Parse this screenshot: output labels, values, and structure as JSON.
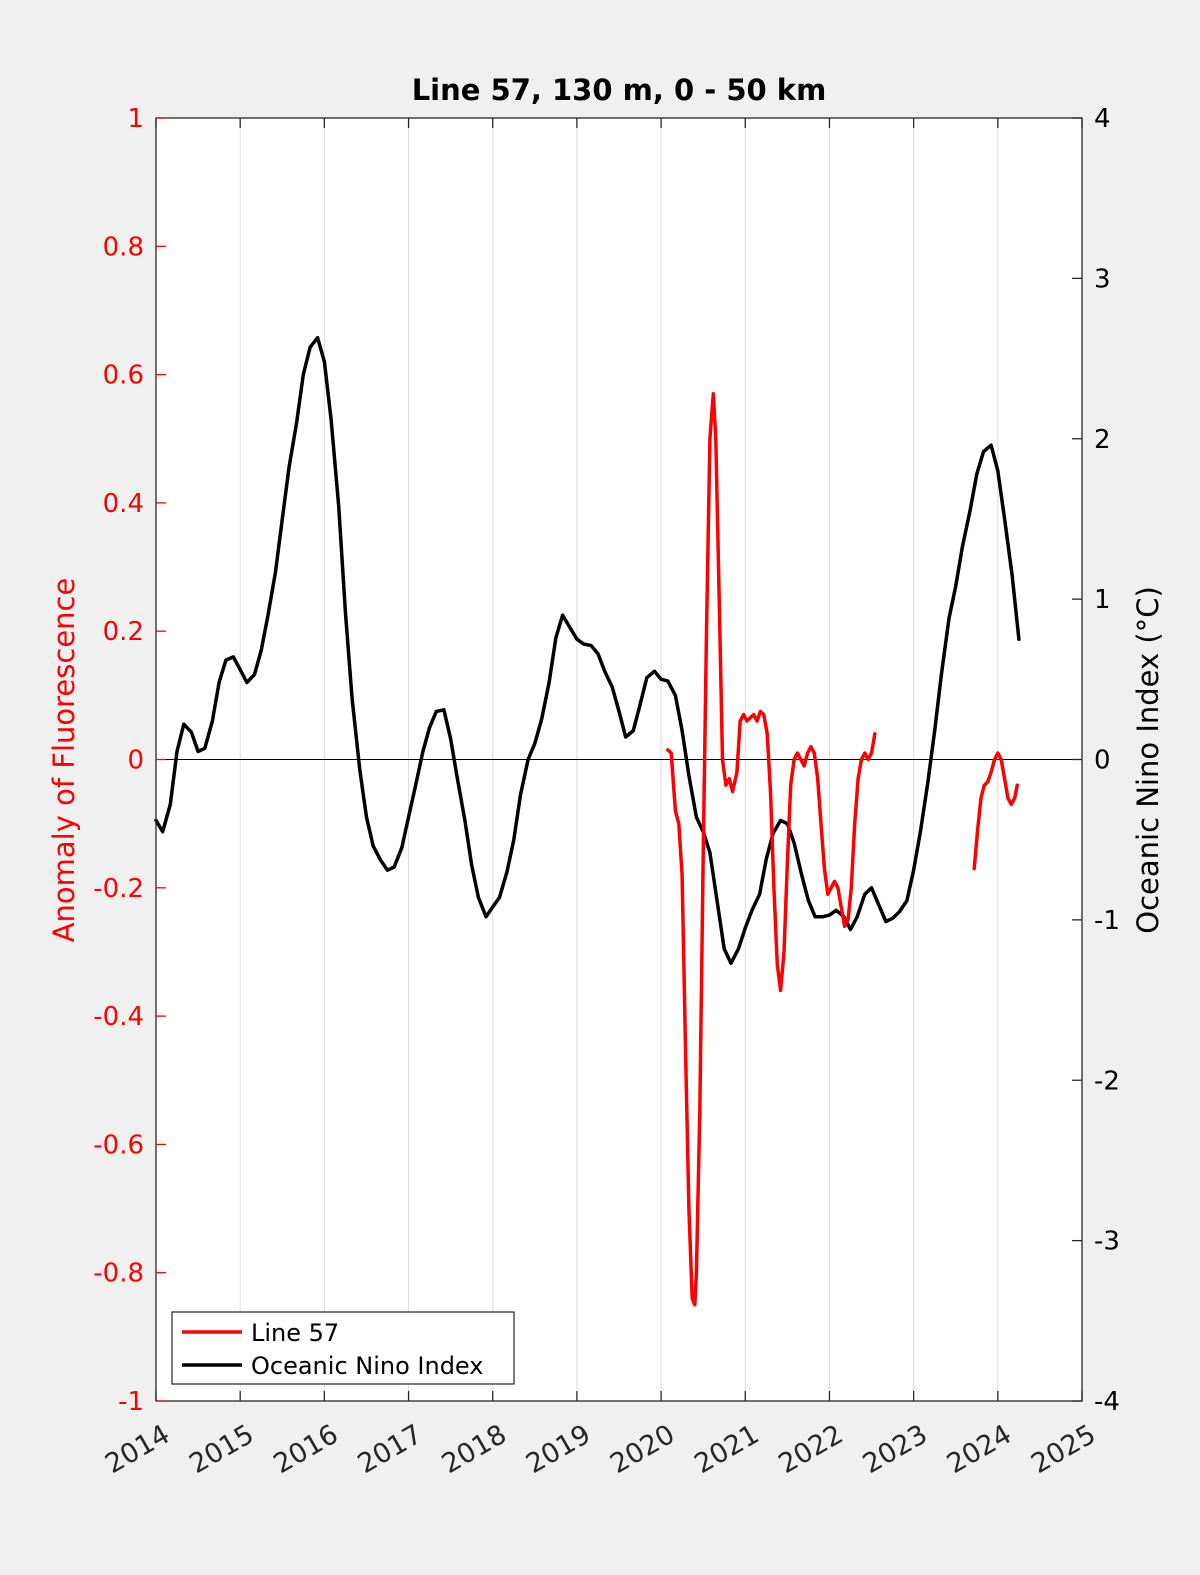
{
  "chart_data": {
    "type": "line",
    "title": "Line 57, 130 m, 0 - 50 km",
    "xlabel": "",
    "ylabel_left": "Anomaly of Fluorescence",
    "ylabel_right": "Oceanic Nino Index (°C)",
    "xlim": [
      2014,
      2025
    ],
    "ylim_left": [
      -1,
      1
    ],
    "ylim_right": [
      -4,
      4
    ],
    "x_ticks": [
      "2014",
      "2015",
      "2016",
      "2017",
      "2018",
      "2019",
      "2020",
      "2021",
      "2022",
      "2023",
      "2024",
      "2025"
    ],
    "y_ticks_left": [
      "1",
      "0.8",
      "0.6",
      "0.4",
      "0.2",
      "0",
      "-0.2",
      "-0.4",
      "-0.6",
      "-0.8",
      "-1"
    ],
    "y_ticks_right": [
      "4",
      "3",
      "2",
      "1",
      "0",
      "-1",
      "-2",
      "-3",
      "-4"
    ],
    "grid": "vertical",
    "legend_position": "bottom-left",
    "colors": {
      "line57": "#ff0000",
      "oni": "#000000",
      "left_axis": "#ff0000",
      "right_axis": "#000000"
    },
    "series": [
      {
        "name": "Line 57",
        "axis": "left",
        "segments": [
          [
            [
              2020.08,
              0.015
            ],
            [
              2020.12,
              0.01
            ],
            [
              2020.17,
              -0.08
            ],
            [
              2020.21,
              -0.1
            ],
            [
              2020.25,
              -0.18
            ],
            [
              2020.29,
              -0.45
            ],
            [
              2020.33,
              -0.7
            ],
            [
              2020.37,
              -0.84
            ],
            [
              2020.4,
              -0.85
            ],
            [
              2020.42,
              -0.8
            ],
            [
              2020.46,
              -0.55
            ],
            [
              2020.5,
              -0.15
            ],
            [
              2020.54,
              0.2
            ],
            [
              2020.58,
              0.5
            ],
            [
              2020.62,
              0.57
            ],
            [
              2020.65,
              0.5
            ],
            [
              2020.69,
              0.25
            ],
            [
              2020.73,
              0.0
            ],
            [
              2020.77,
              -0.04
            ],
            [
              2020.81,
              -0.03
            ],
            [
              2020.85,
              -0.05
            ],
            [
              2020.9,
              -0.02
            ],
            [
              2020.94,
              0.06
            ],
            [
              2020.98,
              0.07
            ],
            [
              2021.02,
              0.06
            ],
            [
              2021.06,
              0.065
            ],
            [
              2021.1,
              0.07
            ],
            [
              2021.14,
              0.06
            ],
            [
              2021.18,
              0.075
            ],
            [
              2021.22,
              0.07
            ],
            [
              2021.26,
              0.04
            ],
            [
              2021.3,
              -0.05
            ],
            [
              2021.34,
              -0.2
            ],
            [
              2021.38,
              -0.32
            ],
            [
              2021.42,
              -0.36
            ],
            [
              2021.46,
              -0.3
            ],
            [
              2021.5,
              -0.16
            ],
            [
              2021.54,
              -0.04
            ],
            [
              2021.58,
              0.0
            ],
            [
              2021.62,
              0.01
            ],
            [
              2021.66,
              0.0
            ],
            [
              2021.7,
              -0.01
            ],
            [
              2021.74,
              0.01
            ],
            [
              2021.78,
              0.02
            ],
            [
              2021.82,
              0.01
            ],
            [
              2021.86,
              -0.03
            ],
            [
              2021.9,
              -0.1
            ],
            [
              2021.94,
              -0.17
            ],
            [
              2021.98,
              -0.21
            ],
            [
              2022.02,
              -0.2
            ],
            [
              2022.06,
              -0.19
            ],
            [
              2022.1,
              -0.2
            ],
            [
              2022.14,
              -0.23
            ],
            [
              2022.18,
              -0.26
            ],
            [
              2022.22,
              -0.25
            ],
            [
              2022.26,
              -0.2
            ],
            [
              2022.3,
              -0.1
            ],
            [
              2022.34,
              -0.03
            ],
            [
              2022.38,
              0.0
            ],
            [
              2022.42,
              0.01
            ],
            [
              2022.46,
              0.0
            ],
            [
              2022.5,
              0.01
            ],
            [
              2022.54,
              0.04
            ]
          ],
          [
            [
              2023.72,
              -0.17
            ],
            [
              2023.76,
              -0.11
            ],
            [
              2023.8,
              -0.06
            ],
            [
              2023.84,
              -0.04
            ],
            [
              2023.88,
              -0.035
            ],
            [
              2023.92,
              -0.02
            ],
            [
              2023.96,
              0.0
            ],
            [
              2024.0,
              0.01
            ],
            [
              2024.04,
              0.0
            ],
            [
              2024.08,
              -0.03
            ],
            [
              2024.12,
              -0.06
            ],
            [
              2024.16,
              -0.07
            ],
            [
              2024.2,
              -0.06
            ],
            [
              2024.23,
              -0.04
            ]
          ]
        ]
      },
      {
        "name": "Oceanic Nino Index",
        "axis": "right",
        "segments": [
          [
            [
              2014.0,
              -0.38
            ],
            [
              2014.08,
              -0.45
            ],
            [
              2014.17,
              -0.28
            ],
            [
              2014.25,
              0.05
            ],
            [
              2014.33,
              0.22
            ],
            [
              2014.42,
              0.17
            ],
            [
              2014.5,
              0.05
            ],
            [
              2014.58,
              0.07
            ],
            [
              2014.67,
              0.24
            ],
            [
              2014.75,
              0.48
            ],
            [
              2014.83,
              0.62
            ],
            [
              2014.92,
              0.64
            ],
            [
              2015.0,
              0.56
            ],
            [
              2015.08,
              0.48
            ],
            [
              2015.17,
              0.53
            ],
            [
              2015.25,
              0.68
            ],
            [
              2015.33,
              0.9
            ],
            [
              2015.42,
              1.17
            ],
            [
              2015.5,
              1.5
            ],
            [
              2015.58,
              1.82
            ],
            [
              2015.67,
              2.1
            ],
            [
              2015.75,
              2.4
            ],
            [
              2015.83,
              2.57
            ],
            [
              2015.92,
              2.63
            ],
            [
              2016.0,
              2.48
            ],
            [
              2016.08,
              2.12
            ],
            [
              2016.17,
              1.58
            ],
            [
              2016.25,
              0.92
            ],
            [
              2016.33,
              0.38
            ],
            [
              2016.42,
              -0.06
            ],
            [
              2016.5,
              -0.36
            ],
            [
              2016.58,
              -0.54
            ],
            [
              2016.67,
              -0.63
            ],
            [
              2016.75,
              -0.69
            ],
            [
              2016.83,
              -0.67
            ],
            [
              2016.92,
              -0.55
            ],
            [
              2017.0,
              -0.36
            ],
            [
              2017.08,
              -0.17
            ],
            [
              2017.17,
              0.05
            ],
            [
              2017.25,
              0.2
            ],
            [
              2017.33,
              0.3
            ],
            [
              2017.42,
              0.31
            ],
            [
              2017.5,
              0.13
            ],
            [
              2017.58,
              -0.12
            ],
            [
              2017.67,
              -0.38
            ],
            [
              2017.75,
              -0.66
            ],
            [
              2017.83,
              -0.86
            ],
            [
              2017.92,
              -0.98
            ],
            [
              2018.0,
              -0.92
            ],
            [
              2018.08,
              -0.86
            ],
            [
              2018.17,
              -0.7
            ],
            [
              2018.25,
              -0.5
            ],
            [
              2018.33,
              -0.22
            ],
            [
              2018.42,
              0.0
            ],
            [
              2018.5,
              0.1
            ],
            [
              2018.58,
              0.25
            ],
            [
              2018.67,
              0.48
            ],
            [
              2018.75,
              0.76
            ],
            [
              2018.83,
              0.9
            ],
            [
              2018.92,
              0.82
            ],
            [
              2019.0,
              0.75
            ],
            [
              2019.08,
              0.72
            ],
            [
              2019.17,
              0.71
            ],
            [
              2019.25,
              0.66
            ],
            [
              2019.33,
              0.55
            ],
            [
              2019.42,
              0.45
            ],
            [
              2019.5,
              0.3
            ],
            [
              2019.58,
              0.14
            ],
            [
              2019.67,
              0.18
            ],
            [
              2019.75,
              0.34
            ],
            [
              2019.83,
              0.51
            ],
            [
              2019.92,
              0.55
            ],
            [
              2020.0,
              0.5
            ],
            [
              2020.08,
              0.49
            ],
            [
              2020.17,
              0.4
            ],
            [
              2020.25,
              0.18
            ],
            [
              2020.33,
              -0.1
            ],
            [
              2020.42,
              -0.36
            ],
            [
              2020.5,
              -0.45
            ],
            [
              2020.58,
              -0.58
            ],
            [
              2020.67,
              -0.9
            ],
            [
              2020.75,
              -1.18
            ],
            [
              2020.83,
              -1.27
            ],
            [
              2020.92,
              -1.18
            ],
            [
              2021.0,
              -1.05
            ],
            [
              2021.08,
              -0.94
            ],
            [
              2021.17,
              -0.84
            ],
            [
              2021.25,
              -0.62
            ],
            [
              2021.33,
              -0.46
            ],
            [
              2021.42,
              -0.38
            ],
            [
              2021.5,
              -0.4
            ],
            [
              2021.58,
              -0.52
            ],
            [
              2021.67,
              -0.72
            ],
            [
              2021.75,
              -0.88
            ],
            [
              2021.83,
              -0.98
            ],
            [
              2021.92,
              -0.98
            ],
            [
              2022.0,
              -0.97
            ],
            [
              2022.08,
              -0.94
            ],
            [
              2022.17,
              -0.98
            ],
            [
              2022.25,
              -1.06
            ],
            [
              2022.33,
              -0.98
            ],
            [
              2022.42,
              -0.84
            ],
            [
              2022.5,
              -0.8
            ],
            [
              2022.58,
              -0.9
            ],
            [
              2022.67,
              -1.01
            ],
            [
              2022.75,
              -0.99
            ],
            [
              2022.83,
              -0.95
            ],
            [
              2022.92,
              -0.88
            ],
            [
              2023.0,
              -0.69
            ],
            [
              2023.08,
              -0.45
            ],
            [
              2023.17,
              -0.14
            ],
            [
              2023.25,
              0.18
            ],
            [
              2023.33,
              0.53
            ],
            [
              2023.42,
              0.88
            ],
            [
              2023.5,
              1.08
            ],
            [
              2023.58,
              1.33
            ],
            [
              2023.67,
              1.55
            ],
            [
              2023.75,
              1.78
            ],
            [
              2023.83,
              1.92
            ],
            [
              2023.92,
              1.96
            ],
            [
              2024.0,
              1.8
            ],
            [
              2024.08,
              1.5
            ],
            [
              2024.17,
              1.15
            ],
            [
              2024.25,
              0.75
            ]
          ]
        ]
      }
    ]
  }
}
